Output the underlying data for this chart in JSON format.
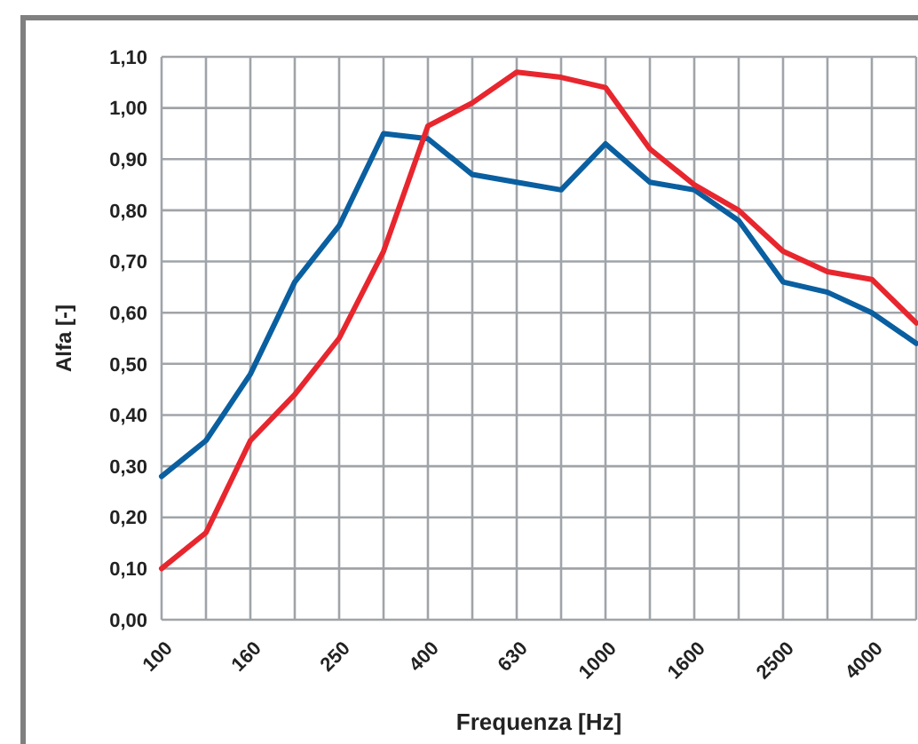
{
  "chart_data": {
    "type": "line",
    "xlabel": "Frequenza [Hz]",
    "ylabel": "Alfa [-]",
    "categories": [
      "100",
      null,
      "160",
      null,
      "250",
      null,
      "400",
      null,
      "630",
      null,
      "1000",
      null,
      "1600",
      null,
      "2500",
      null,
      "4000",
      null
    ],
    "series": [
      {
        "color": "#0a5fa0",
        "values": [
          0.28,
          0.35,
          0.48,
          0.66,
          0.77,
          0.95,
          0.94,
          0.87,
          0.855,
          0.84,
          0.93,
          0.855,
          0.84,
          0.78,
          0.66,
          0.64,
          0.6,
          0.54
        ]
      },
      {
        "color": "#e8262e",
        "values": [
          0.1,
          0.17,
          0.35,
          0.44,
          0.55,
          0.72,
          0.965,
          1.01,
          1.07,
          1.06,
          1.04,
          0.92,
          0.85,
          0.8,
          0.72,
          0.68,
          0.665,
          0.58
        ]
      }
    ],
    "ylim": [
      0,
      1.1
    ],
    "yticks": [
      {
        "value": 0,
        "label": "0,00"
      },
      {
        "value": 0.1,
        "label": "0,10"
      },
      {
        "value": 0.2,
        "label": "0,20"
      },
      {
        "value": 0.3,
        "label": "0,30"
      },
      {
        "value": 0.4,
        "label": "0,40"
      },
      {
        "value": 0.5,
        "label": "0,50"
      },
      {
        "value": 0.6,
        "label": "0,60"
      },
      {
        "value": 0.7,
        "label": "0,70"
      },
      {
        "value": 0.8,
        "label": "0,80"
      },
      {
        "value": 0.9,
        "label": "0,90"
      },
      {
        "value": 1,
        "label": "1,00"
      },
      {
        "value": 1.1,
        "label": "1,10"
      }
    ],
    "grid": true,
    "marker": "none",
    "line_style": "solid"
  }
}
